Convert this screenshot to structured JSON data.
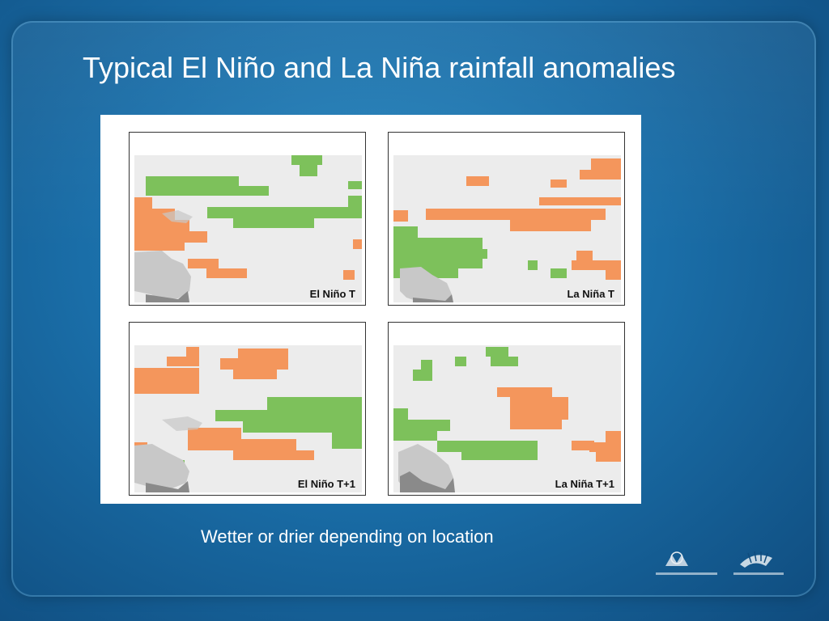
{
  "slide": {
    "title": "Typical El Niño and La Niña rainfall anomalies",
    "caption": "Wetter or drier depending on location"
  },
  "colors": {
    "wetter": "#7dc15b",
    "drier": "#f4965c",
    "land": "#c8c8c8",
    "grid_bg": "#ececec",
    "background": "#1a6ea8"
  },
  "maps": [
    {
      "label": "El Niño T"
    },
    {
      "label": "La Niña T"
    },
    {
      "label": "El Niño T+1"
    },
    {
      "label": "La Niña T+1"
    }
  ],
  "logos": [
    {
      "icon": "australian-government-crest-icon"
    },
    {
      "icon": "bureau-of-meteorology-logo-icon"
    }
  ]
}
